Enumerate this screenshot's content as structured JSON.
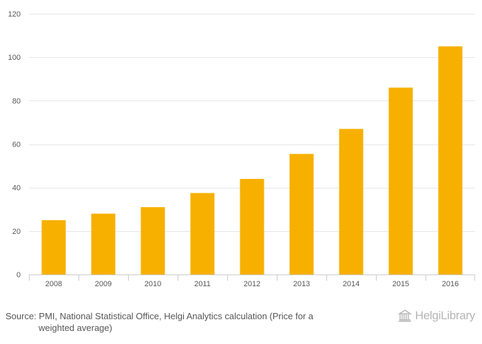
{
  "chart_data": {
    "type": "bar",
    "categories": [
      "2008",
      "2009",
      "2010",
      "2011",
      "2012",
      "2013",
      "2014",
      "2015",
      "2016"
    ],
    "values": [
      25,
      28,
      31,
      37.5,
      44,
      55.5,
      67,
      86,
      105
    ],
    "ylim": [
      0,
      120
    ],
    "yticks": [
      0,
      20,
      40,
      60,
      80,
      100,
      120
    ],
    "grid": true,
    "bar_color": "#F7B000",
    "title": "",
    "xlabel": "",
    "ylabel": ""
  },
  "footer": {
    "source_line1": "Source: PMI, National Statistical Office, Helgi Analytics calculation (Price for a",
    "source_line2": "weighted average)",
    "logo_text": "HelgiLibrary"
  }
}
